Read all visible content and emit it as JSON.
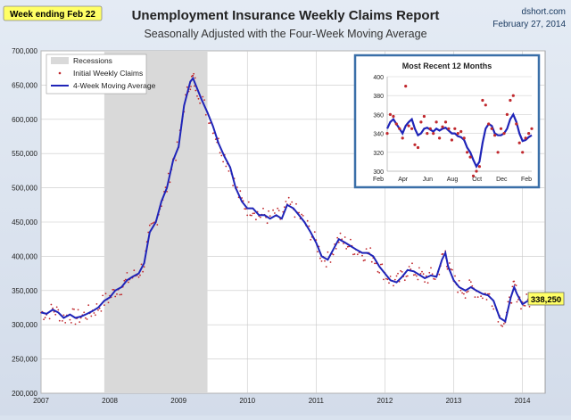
{
  "header": {
    "badge": "Week ending Feb 22",
    "title": "Unemployment Insurance Weekly Claims Report",
    "subtitle": "Seasonally Adjusted with the Four-Week Moving Average",
    "source": "dshort.com",
    "date": "February 27, 2014"
  },
  "colors": {
    "recession": "#d9d9d9",
    "claims": "#c0282d",
    "avg": "#1f24b8",
    "callout": "#ffff66",
    "inset_border": "#3a6fa8"
  },
  "chart_data": [
    {
      "type": "line",
      "title": "Unemployment Insurance Weekly Claims Report",
      "subtitle": "Seasonally Adjusted with the Four-Week Moving Average",
      "ylim": [
        200000,
        700000
      ],
      "y_ticks": [
        "200,000",
        "250,000",
        "300,000",
        "350,000",
        "400,000",
        "450,000",
        "500,000",
        "550,000",
        "600,000",
        "650,000",
        "700,000"
      ],
      "x_ticks": [
        "2007",
        "2008",
        "2009",
        "2010",
        "2011",
        "2012",
        "2013",
        "2014"
      ],
      "xlim": [
        2007.0,
        2014.33
      ],
      "grid": true,
      "legend_position": "top-left",
      "recession": {
        "label": "Recessions",
        "start": 2007.92,
        "end": 2009.42
      },
      "series": [
        {
          "name": "Initial Weekly Claims",
          "style": "points"
        },
        {
          "name": "4-Week Moving Average",
          "style": "line",
          "points": [
            [
              2007.0,
              318000
            ],
            [
              2007.08,
              316000
            ],
            [
              2007.17,
              322000
            ],
            [
              2007.25,
              318000
            ],
            [
              2007.33,
              310000
            ],
            [
              2007.42,
              315000
            ],
            [
              2007.5,
              310000
            ],
            [
              2007.58,
              312000
            ],
            [
              2007.67,
              316000
            ],
            [
              2007.75,
              320000
            ],
            [
              2007.83,
              325000
            ],
            [
              2007.92,
              335000
            ],
            [
              2008.0,
              340000
            ],
            [
              2008.08,
              350000
            ],
            [
              2008.17,
              355000
            ],
            [
              2008.25,
              365000
            ],
            [
              2008.33,
              370000
            ],
            [
              2008.42,
              375000
            ],
            [
              2008.5,
              390000
            ],
            [
              2008.58,
              435000
            ],
            [
              2008.67,
              450000
            ],
            [
              2008.75,
              480000
            ],
            [
              2008.83,
              500000
            ],
            [
              2008.92,
              540000
            ],
            [
              2009.0,
              560000
            ],
            [
              2009.08,
              620000
            ],
            [
              2009.17,
              655000
            ],
            [
              2009.21,
              660000
            ],
            [
              2009.25,
              650000
            ],
            [
              2009.33,
              630000
            ],
            [
              2009.42,
              610000
            ],
            [
              2009.5,
              590000
            ],
            [
              2009.58,
              565000
            ],
            [
              2009.67,
              545000
            ],
            [
              2009.75,
              530000
            ],
            [
              2009.83,
              500000
            ],
            [
              2009.92,
              480000
            ],
            [
              2010.0,
              470000
            ],
            [
              2010.08,
              470000
            ],
            [
              2010.17,
              460000
            ],
            [
              2010.25,
              460000
            ],
            [
              2010.33,
              455000
            ],
            [
              2010.42,
              460000
            ],
            [
              2010.5,
              455000
            ],
            [
              2010.58,
              475000
            ],
            [
              2010.67,
              470000
            ],
            [
              2010.75,
              460000
            ],
            [
              2010.83,
              450000
            ],
            [
              2010.92,
              435000
            ],
            [
              2011.0,
              420000
            ],
            [
              2011.08,
              400000
            ],
            [
              2011.17,
              395000
            ],
            [
              2011.25,
              410000
            ],
            [
              2011.33,
              425000
            ],
            [
              2011.42,
              420000
            ],
            [
              2011.5,
              415000
            ],
            [
              2011.58,
              410000
            ],
            [
              2011.67,
              405000
            ],
            [
              2011.75,
              405000
            ],
            [
              2011.83,
              400000
            ],
            [
              2011.92,
              385000
            ],
            [
              2012.0,
              375000
            ],
            [
              2012.08,
              365000
            ],
            [
              2012.17,
              362000
            ],
            [
              2012.25,
              370000
            ],
            [
              2012.33,
              380000
            ],
            [
              2012.42,
              378000
            ],
            [
              2012.5,
              373000
            ],
            [
              2012.58,
              368000
            ],
            [
              2012.67,
              372000
            ],
            [
              2012.75,
              370000
            ],
            [
              2012.83,
              395000
            ],
            [
              2012.88,
              405000
            ],
            [
              2012.92,
              385000
            ],
            [
              2013.0,
              365000
            ],
            [
              2013.08,
              355000
            ],
            [
              2013.17,
              350000
            ],
            [
              2013.25,
              355000
            ],
            [
              2013.33,
              350000
            ],
            [
              2013.42,
              345000
            ],
            [
              2013.5,
              343000
            ],
            [
              2013.58,
              335000
            ],
            [
              2013.67,
              310000
            ],
            [
              2013.75,
              305000
            ],
            [
              2013.83,
              340000
            ],
            [
              2013.88,
              355000
            ],
            [
              2013.92,
              345000
            ],
            [
              2014.0,
              330000
            ],
            [
              2014.08,
              335000
            ],
            [
              2014.17,
              335000
            ]
          ]
        }
      ],
      "callout": "338,250"
    },
    {
      "type": "line",
      "title": "Most Recent 12 Months",
      "ylim": [
        300,
        400
      ],
      "y_ticks": [
        "300",
        "320",
        "340",
        "360",
        "380",
        "400"
      ],
      "x_ticks": [
        "Feb",
        "Apr",
        "Jun",
        "Aug",
        "Oct",
        "Dec",
        "Feb"
      ],
      "series": [
        {
          "name": "Initial Weekly Claims",
          "style": "points",
          "values": [
            340,
            360,
            358,
            350,
            345,
            335,
            390,
            348,
            345,
            328,
            325,
            352,
            358,
            340,
            345,
            340,
            352,
            335,
            347,
            352,
            345,
            333,
            345,
            340,
            342,
            335,
            320,
            315,
            295,
            300,
            305,
            375,
            370,
            350,
            345,
            338,
            320,
            345,
            340,
            360,
            375,
            380,
            350,
            330,
            320,
            335,
            340,
            345
          ]
        },
        {
          "name": "4-Week Moving Average",
          "style": "line",
          "values": [
            345,
            352,
            355,
            350,
            345,
            340,
            348,
            352,
            355,
            345,
            338,
            340,
            345,
            346,
            344,
            342,
            345,
            343,
            345,
            346,
            343,
            340,
            340,
            337,
            336,
            333,
            325,
            320,
            312,
            305,
            310,
            330,
            345,
            350,
            348,
            340,
            338,
            338,
            340,
            345,
            355,
            360,
            352,
            340,
            332,
            333,
            336,
            338
          ]
        }
      ]
    }
  ]
}
